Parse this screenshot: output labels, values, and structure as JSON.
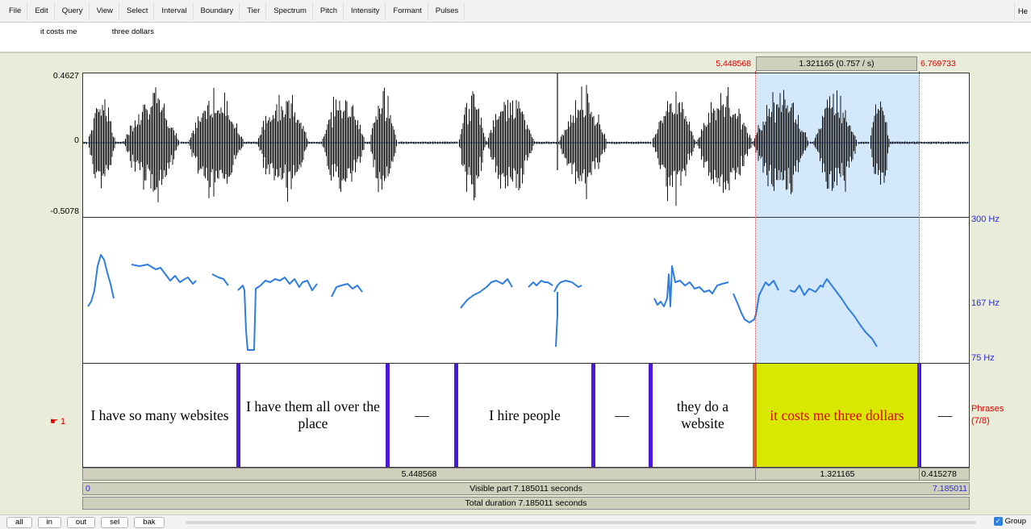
{
  "menu": {
    "items": [
      "File",
      "Edit",
      "Query",
      "View",
      "Select",
      "Interval",
      "Boundary",
      "Tier",
      "Spectrum",
      "Pitch",
      "Intensity",
      "Formant",
      "Pulses"
    ],
    "right": "He"
  },
  "text_area": {
    "text_a": "it costs me",
    "text_b": "three dollars"
  },
  "selection": {
    "start": "5.448568",
    "duration": "1.321165 (0.757 / s)",
    "end": "6.769733"
  },
  "waveform": {
    "ymax": "0.4627",
    "yzero": "0",
    "ymin": "-0.5078"
  },
  "pitch": {
    "top": "300 Hz",
    "mid": "167 Hz",
    "bottom": "75 Hz"
  },
  "tier": {
    "marker": "1",
    "name": "Phrases",
    "count": "(7/8)",
    "intervals": [
      {
        "text": "I have so many websites"
      },
      {
        "text": "I have them all over the place"
      },
      {
        "text": "—"
      },
      {
        "text": "I hire people"
      },
      {
        "text": "—"
      },
      {
        "text": "they do a website"
      },
      {
        "text": "it costs me three dollars"
      },
      {
        "text": "—"
      }
    ]
  },
  "rows": {
    "before_sel": "5.448568",
    "sel": "1.321165",
    "after_sel": "0.415278",
    "visible_start": "0",
    "visible_label": "Visible part 7.185011 seconds",
    "visible_end": "7.185011",
    "total_label": "Total duration 7.185011 seconds"
  },
  "bottom": {
    "buttons": [
      "all",
      "in",
      "out",
      "sel",
      "bak"
    ],
    "group_label": "Group"
  },
  "colors": {
    "selection": "#d4e8fb",
    "pitch_line": "#2f7de0",
    "boundary": "#4a1ad8",
    "selected_interval": "#d8e800"
  }
}
